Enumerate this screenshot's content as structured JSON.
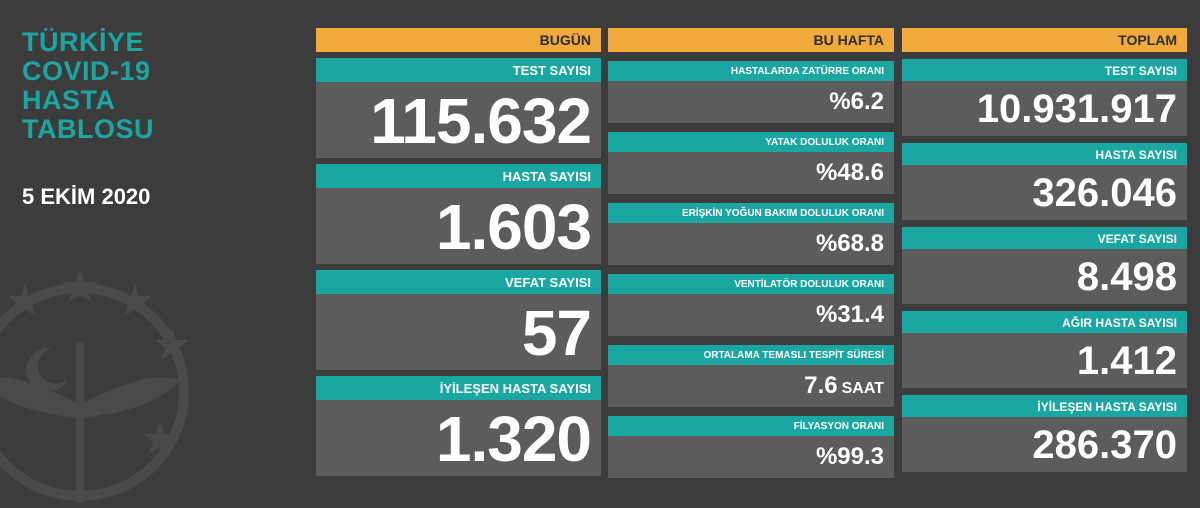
{
  "title_lines": [
    "TÜRKİYE",
    "COVID-19",
    "HASTA",
    "TABLOSU"
  ],
  "date": "5 EKİM 2020",
  "colors": {
    "teal": "#1aa7a2",
    "orange": "#f0a93b",
    "panel": "#5c5c5c",
    "background": "#3c3c3c"
  },
  "columns": {
    "today": {
      "header": "BUGÜN",
      "cards": [
        {
          "label": "TEST SAYISI",
          "value": "115.632"
        },
        {
          "label": "HASTA SAYISI",
          "value": "1.603"
        },
        {
          "label": "VEFAT SAYISI",
          "value": "57"
        },
        {
          "label": "İYİLEŞEN HASTA SAYISI",
          "value": "1.320"
        }
      ]
    },
    "week": {
      "header": "BU HAFTA",
      "cards": [
        {
          "label": "HASTALARDA ZATÜRRE ORANI",
          "value": "%6.2"
        },
        {
          "label": "YATAK DOLULUK ORANI",
          "value": "%48.6"
        },
        {
          "label": "ERİŞKİN YOĞUN BAKIM DOLULUK ORANI",
          "value": "%68.8"
        },
        {
          "label": "VENTİLATÖR DOLULUK ORANI",
          "value": "%31.4"
        },
        {
          "label": "ORTALAMA TEMASLI TESPİT SÜRESİ",
          "value": "7.6",
          "unit": "SAAT"
        },
        {
          "label": "FİLYASYON ORANI",
          "value": "%99.3"
        }
      ]
    },
    "total": {
      "header": "TOPLAM",
      "cards": [
        {
          "label": "TEST SAYISI",
          "value": "10.931.917"
        },
        {
          "label": "HASTA SAYISI",
          "value": "326.046"
        },
        {
          "label": "VEFAT SAYISI",
          "value": "8.498"
        },
        {
          "label": "AĞIR HASTA SAYISI",
          "value": "1.412"
        },
        {
          "label": "İYİLEŞEN HASTA SAYISI",
          "value": "286.370"
        }
      ]
    }
  }
}
